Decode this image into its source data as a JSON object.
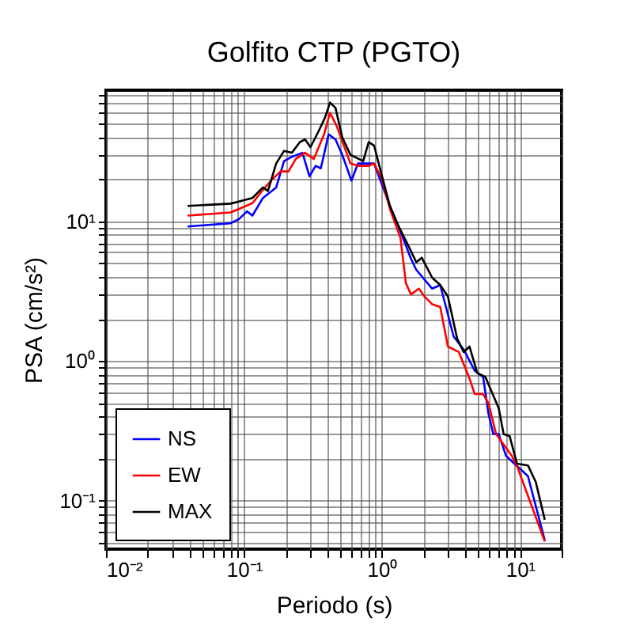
{
  "chart_data": {
    "type": "line",
    "title": "Golfito CTP (PGTO)",
    "xlabel": "Periodo (s)",
    "ylabel": "PSA (cm/s²)",
    "log": "xy",
    "grid": true,
    "legend": "bottom left",
    "line_style": "solid",
    "marker": "none",
    "xlim": [
      0.01,
      20
    ],
    "ylim": [
      0.045,
      87
    ],
    "xticks": [
      {
        "value": 0.01,
        "label": "10⁻²"
      },
      {
        "value": 0.1,
        "label": "10⁻¹"
      },
      {
        "value": 1,
        "label": "10⁰"
      },
      {
        "value": 10,
        "label": "10¹"
      }
    ],
    "yticks": [
      {
        "value": 0.1,
        "label": "10⁻¹"
      },
      {
        "value": 1,
        "label": "10⁰"
      },
      {
        "value": 10,
        "label": "10¹"
      }
    ],
    "series": [
      {
        "name": "NS",
        "color": "#0000ff",
        "x": [
          0.039,
          0.08,
          0.092,
          0.105,
          0.115,
          0.137,
          0.171,
          0.195,
          0.222,
          0.265,
          0.298,
          0.33,
          0.36,
          0.41,
          0.46,
          0.515,
          0.6,
          0.67,
          0.8,
          0.875,
          1.14,
          1.3,
          1.62,
          1.77,
          2.31,
          2.64,
          3.3,
          3.9,
          4.7,
          5.4,
          5.9,
          6.4,
          7.0,
          7.9,
          9.5,
          11.4,
          15.1
        ],
        "values": [
          9.2,
          9.7,
          10.4,
          11.8,
          11,
          14.7,
          17.5,
          27,
          29,
          31,
          21,
          25,
          24,
          42,
          38.6,
          30,
          19.6,
          26,
          26,
          26,
          12.9,
          9.5,
          5.4,
          4.5,
          3.3,
          3.5,
          1.5,
          1.21,
          0.85,
          0.77,
          0.42,
          0.3,
          0.3,
          0.21,
          0.177,
          0.15,
          0.052
        ]
      },
      {
        "name": "EW",
        "color": "#ff0000",
        "x": [
          0.039,
          0.08,
          0.115,
          0.137,
          0.16,
          0.184,
          0.21,
          0.237,
          0.277,
          0.32,
          0.38,
          0.42,
          0.47,
          0.59,
          0.67,
          0.8,
          0.875,
          1.0,
          1.14,
          1.36,
          1.49,
          1.62,
          1.85,
          2.03,
          2.31,
          2.64,
          3.0,
          3.6,
          4.3,
          4.7,
          5.4,
          5.9,
          6.7,
          8.7,
          9.5,
          15.1
        ],
        "values": [
          11,
          11.6,
          13.5,
          16.8,
          20,
          22.8,
          22.8,
          28,
          31,
          28,
          42,
          60,
          48,
          26,
          25,
          25,
          26,
          20,
          12.3,
          7.6,
          3.6,
          3.0,
          3.3,
          2.9,
          2.55,
          2.44,
          1.27,
          1.16,
          0.75,
          0.58,
          0.58,
          0.5,
          0.3,
          0.21,
          0.177,
          0.051
        ]
      },
      {
        "name": "MAX",
        "color": "#000000",
        "x": [
          0.039,
          0.08,
          0.115,
          0.137,
          0.149,
          0.171,
          0.195,
          0.222,
          0.254,
          0.277,
          0.303,
          0.346,
          0.385,
          0.42,
          0.46,
          0.515,
          0.59,
          0.73,
          0.8,
          0.875,
          1.0,
          1.14,
          1.3,
          1.55,
          1.77,
          1.94,
          2.31,
          2.64,
          3.0,
          3.5,
          3.9,
          4.3,
          4.9,
          5.6,
          7.0,
          7.6,
          8.4,
          9.5,
          11.4,
          13,
          15.1
        ],
        "values": [
          12.9,
          13.4,
          14.7,
          17.5,
          16.5,
          26,
          32,
          31,
          37,
          38.6,
          34,
          44,
          55,
          71,
          65,
          40,
          30,
          27,
          37,
          35,
          21,
          12.9,
          9.5,
          6.7,
          5.1,
          5.5,
          3.95,
          3.5,
          2.9,
          1.45,
          1.16,
          1.27,
          0.82,
          0.77,
          0.46,
          0.3,
          0.29,
          0.184,
          0.179,
          0.136,
          0.073
        ]
      }
    ]
  }
}
